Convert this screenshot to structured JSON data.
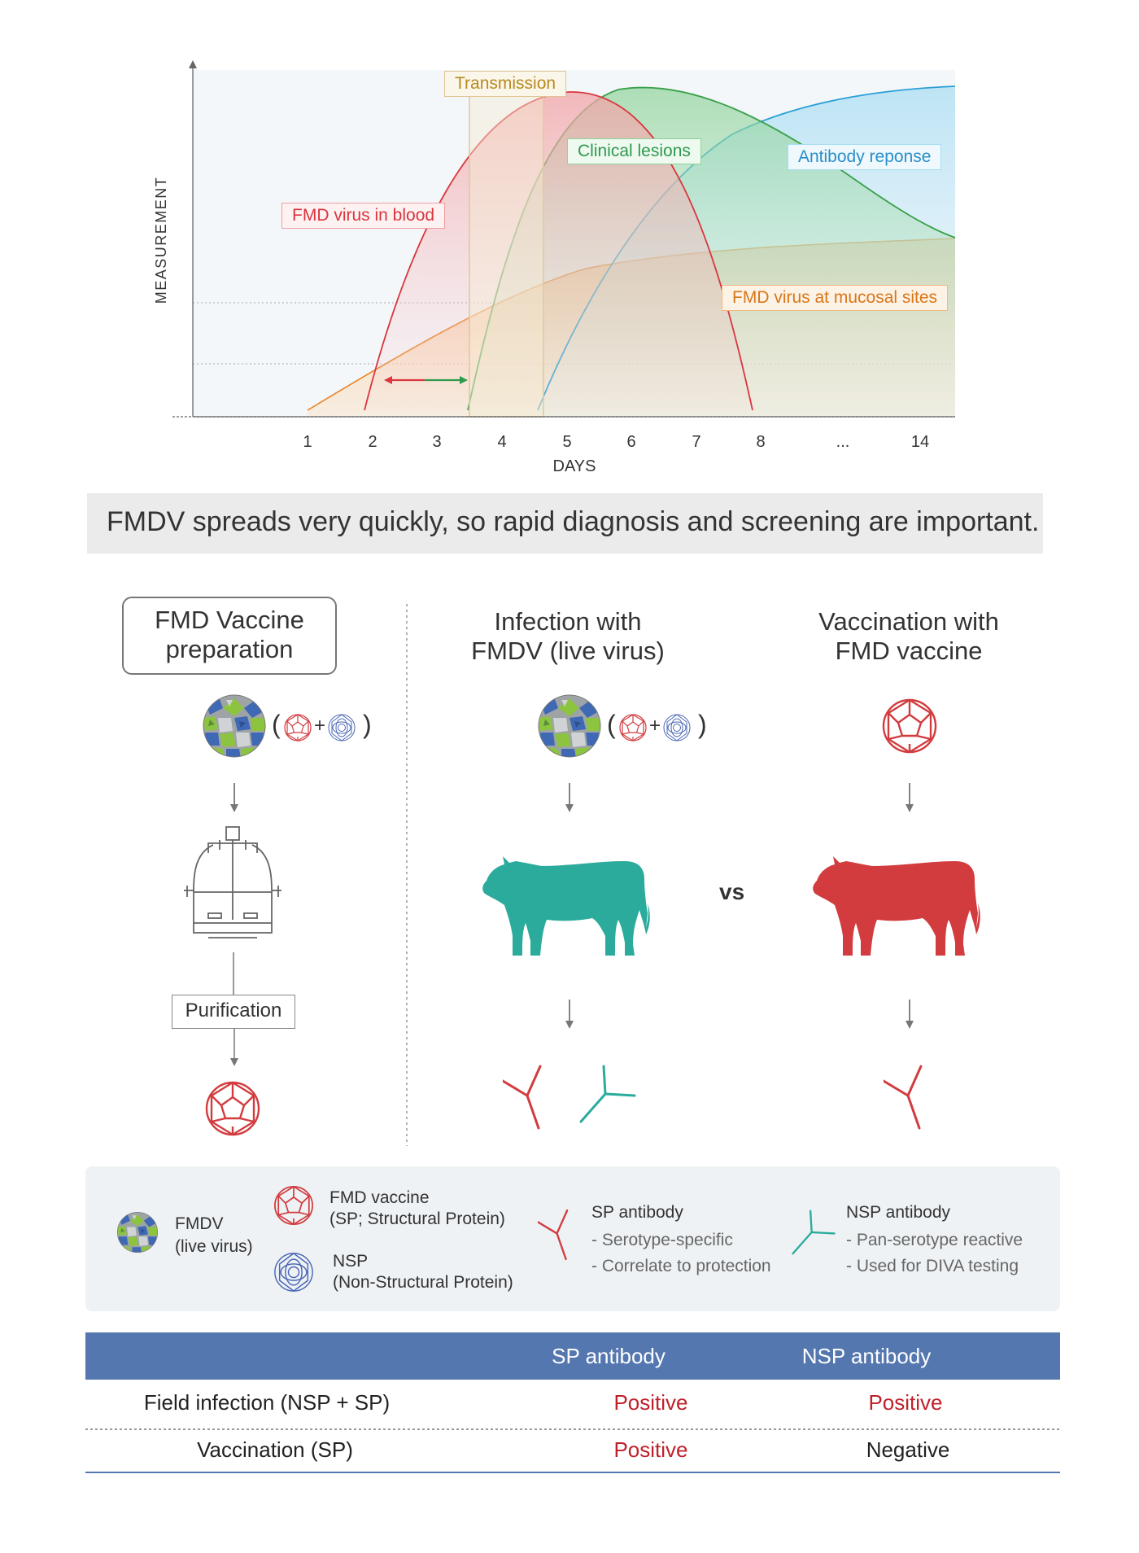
{
  "chart_data": {
    "type": "area",
    "title": "",
    "xlabel": "DAYS",
    "ylabel": "MEASUREMENT",
    "x_ticks": [
      "1",
      "2",
      "3",
      "4",
      "5",
      "6",
      "7",
      "8",
      "...",
      "14"
    ],
    "series": [
      {
        "name": "FMD virus in blood",
        "color": "#d9363e"
      },
      {
        "name": "Clinical lesions",
        "color": "#3aa04a"
      },
      {
        "name": "Antibody reponse",
        "color": "#2a9fd6"
      },
      {
        "name": "FMD virus at mucosal sites",
        "color": "#e8862a"
      }
    ],
    "annotations": [
      "Transmission"
    ]
  },
  "banner": {
    "text": "FMDV spreads very quickly, so rapid diagnosis and screening are important."
  },
  "columns": {
    "prep_title": "FMD Vaccine\npreparation",
    "infection_title": "Infection with\nFMDV (live virus)",
    "vaccination_title": "Vaccination with\nFMD vaccine",
    "vs": "vs",
    "purification": "Purification"
  },
  "legend": {
    "fmdv": {
      "title": "FMDV",
      "sub": "(live virus)"
    },
    "vaccine": {
      "title": "FMD vaccine",
      "sub": "(SP; Structural Protein)"
    },
    "nsp": {
      "title": "NSP",
      "sub": "(Non-Structural Protein)"
    },
    "sp_antibody": {
      "title": "SP antibody",
      "l1": "- Serotype-specific",
      "l2": "- Correlate to protection"
    },
    "nsp_antibody": {
      "title": "NSP antibody",
      "l1": "- Pan-serotype reactive",
      "l2": "- Used for DIVA testing"
    }
  },
  "table": {
    "headers": [
      "",
      "SP antibody",
      "NSP antibody"
    ],
    "rows": [
      {
        "label": "Field infection (NSP + SP)",
        "sp": "Positive",
        "nsp": "Positive"
      },
      {
        "label": "Vaccination (SP)",
        "sp": "Positive",
        "nsp": "Negative"
      }
    ]
  },
  "colors": {
    "positive": "#c0202a",
    "negative": "#222222",
    "infection_cow": "#2aab9c",
    "vaccine_cow": "#d23c3f",
    "table_header": "#5577b0"
  }
}
